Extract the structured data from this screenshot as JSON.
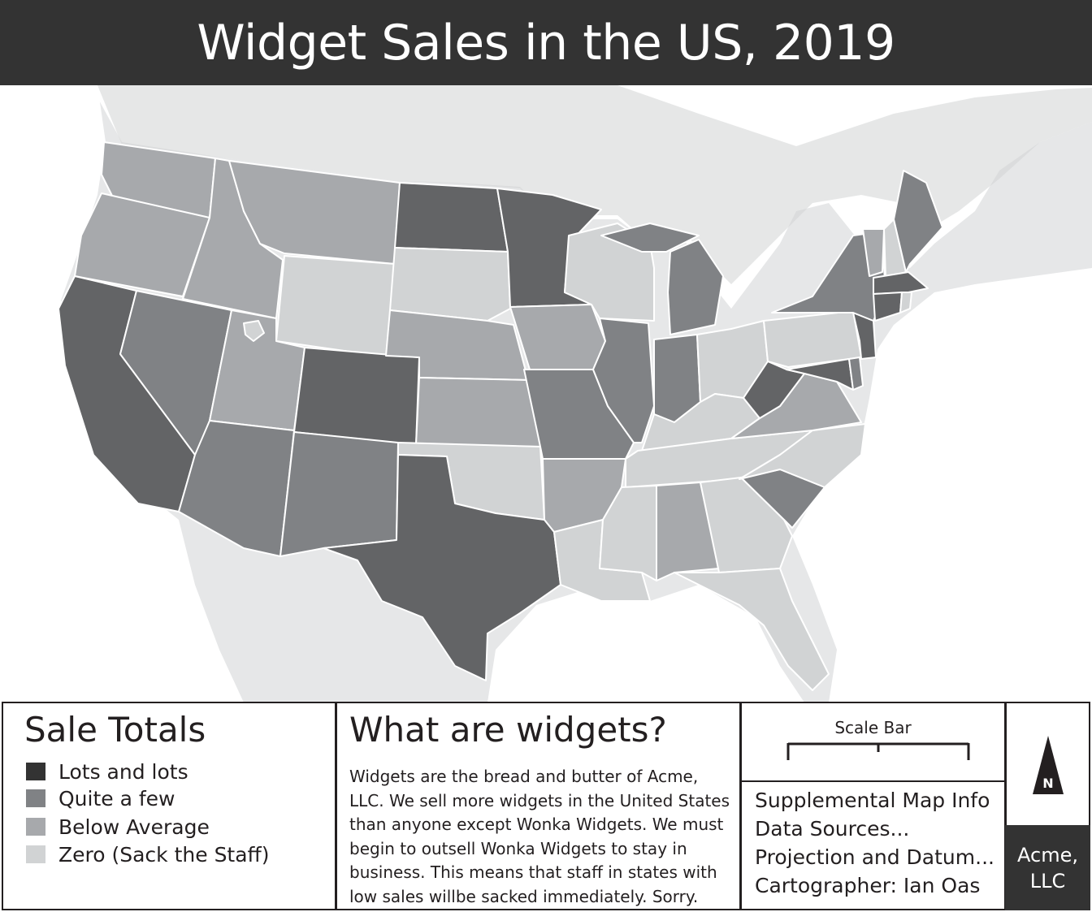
{
  "title": "Widget Sales in the US, 2019",
  "colors": {
    "lots": "#636466",
    "quite_a_few": "#808285",
    "below_average": "#a7a9ac",
    "zero": "#d1d3d4",
    "water": "#ffffff",
    "land_outside": "#e6e7e8",
    "header": "#333333"
  },
  "legend": {
    "title": "Sale Totals",
    "items": [
      {
        "label": "Lots and lots",
        "color": "#333333"
      },
      {
        "label": "Quite a few",
        "color": "#808285"
      },
      {
        "label": "Below Average",
        "color": "#a7a9ac"
      },
      {
        "label": "Zero (Sack the Staff)",
        "color": "#d1d3d4"
      }
    ]
  },
  "sales_by_state": {
    "lots_and_lots": [
      "California",
      "Colorado",
      "Texas",
      "North Dakota",
      "Minnesota",
      "West Virginia",
      "Maryland",
      "New Jersey",
      "Connecticut",
      "Massachusetts"
    ],
    "quite_a_few": [
      "Nevada",
      "Arizona",
      "New Mexico",
      "Missouri",
      "Illinois",
      "Indiana",
      "Michigan",
      "New York",
      "Maine",
      "South Carolina",
      "Delaware"
    ],
    "below_average": [
      "Washington",
      "Oregon",
      "Idaho",
      "Montana",
      "Utah",
      "Nebraska",
      "Kansas",
      "Iowa",
      "Arkansas",
      "Alabama",
      "Virginia",
      "Vermont"
    ],
    "zero": [
      "Wyoming",
      "South Dakota",
      "Oklahoma",
      "Wisconsin",
      "Ohio",
      "Pennsylvania",
      "Kentucky",
      "Tennessee",
      "North Carolina",
      "Mississippi",
      "Louisiana",
      "Georgia",
      "Florida",
      "New Hampshire",
      "Rhode Island"
    ]
  },
  "about": {
    "title": "What are widgets?",
    "lines": [
      "Widgets are the bread and butter of Acme,",
      "LLC. We sell more widgets in the United States",
      "than anyone except Wonka Widgets. We must",
      "begin to outsell Wonka Widgets to stay in",
      "business. This means that staff in states with",
      "low sales willbe sacked immediately. Sorry."
    ]
  },
  "scale": {
    "label": "Scale Bar"
  },
  "info": {
    "lines": [
      "Supplemental Map Info",
      "Data Sources...",
      "Projection and Datum...",
      "Cartographer: Ian Oas"
    ]
  },
  "north": {
    "label": "N"
  },
  "credit": {
    "line1": "Acme,",
    "line2": "LLC"
  }
}
